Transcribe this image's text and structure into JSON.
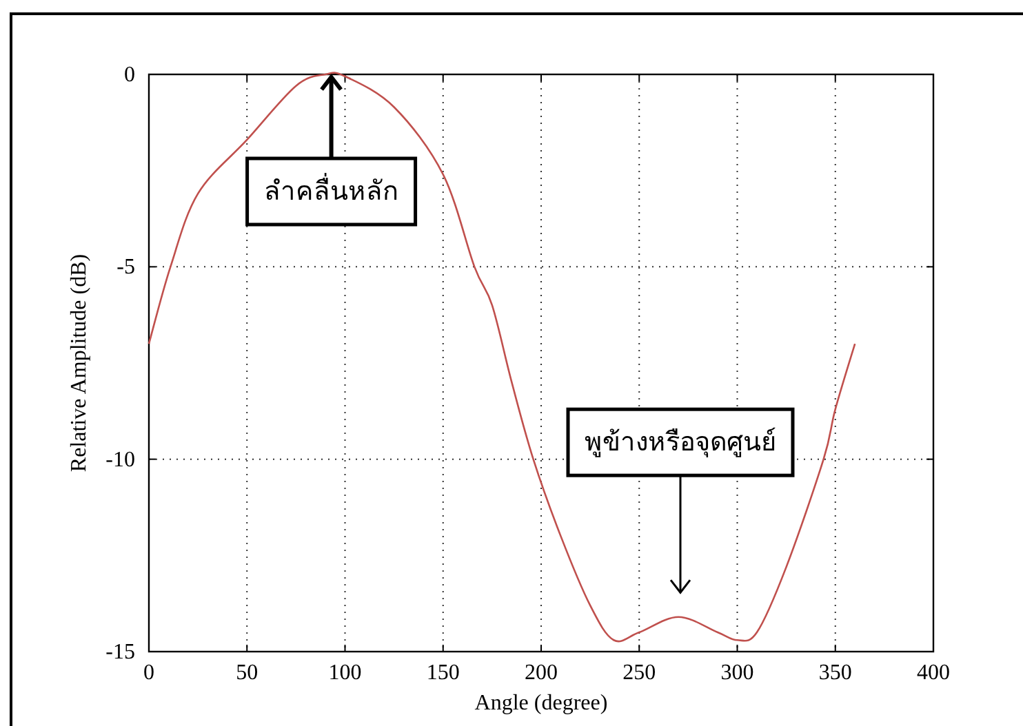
{
  "chart_data": {
    "type": "line",
    "xlabel": "Angle (degree)",
    "ylabel": "Relative Amplitude (dB)",
    "x": [
      0,
      11,
      25,
      50,
      75,
      90,
      100,
      125,
      150,
      166,
      175,
      185,
      196,
      210,
      225,
      237,
      250,
      270,
      290,
      300,
      310,
      325,
      344,
      350,
      360
    ],
    "series": [
      {
        "color": "#c0504d",
        "values": [
          -7,
          -5,
          -3.1,
          -1.7,
          -0.3,
          0,
          -0.05,
          -0.85,
          -2.6,
          -5,
          -6.0,
          -8.0,
          -10,
          -12,
          -13.8,
          -14.7,
          -14.5,
          -14.1,
          -14.5,
          -14.7,
          -14.5,
          -12.8,
          -10,
          -8.7,
          -7
        ]
      }
    ],
    "xlim": [
      0,
      400
    ],
    "xticks": [
      0,
      50,
      100,
      150,
      200,
      250,
      300,
      350,
      400
    ],
    "ylim": [
      -15,
      0
    ],
    "yticks": [
      -15,
      -10,
      -5,
      0
    ],
    "grid": true,
    "line_style": "solid",
    "marker": "none",
    "annotations": [
      {
        "text": "ลำคลื่นหลัก",
        "x": 93,
        "y": 0
      },
      "พูข้างหรือจุดศูนย์"
    ]
  }
}
